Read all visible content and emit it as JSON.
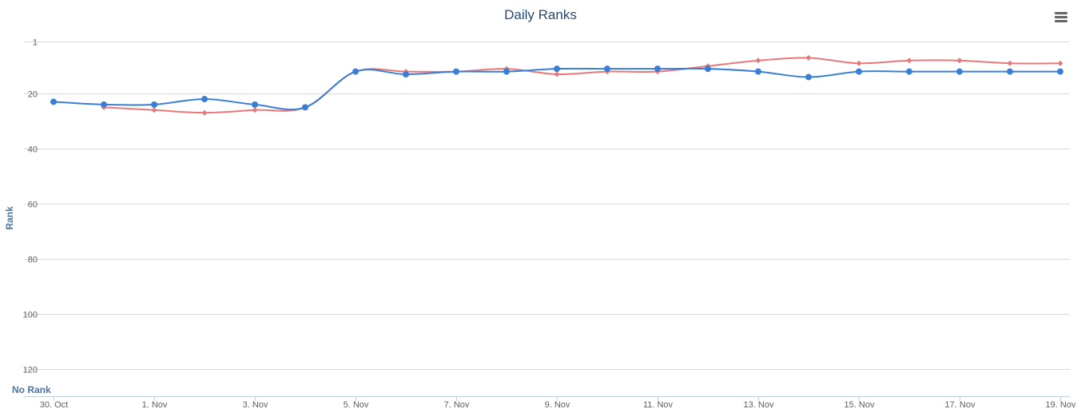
{
  "chart_data": {
    "type": "line",
    "title": "Daily Ranks",
    "ylabel": "Rank",
    "ylim_reversed": [
      1,
      130
    ],
    "y_bottom_label": "No Rank",
    "y_ticks": [
      1,
      20,
      40,
      60,
      80,
      100,
      120
    ],
    "x_tick_labels": [
      "30. Oct",
      "1. Nov",
      "3. Nov",
      "5. Nov",
      "7. Nov",
      "9. Nov",
      "11. Nov",
      "13. Nov",
      "15. Nov",
      "17. Nov",
      "19. Nov"
    ],
    "x": [
      "30. Oct",
      "31. Oct",
      "1. Nov",
      "2. Nov",
      "3. Nov",
      "4. Nov",
      "5. Nov",
      "6. Nov",
      "7. Nov",
      "8. Nov",
      "9. Nov",
      "10. Nov",
      "11. Nov",
      "12. Nov",
      "13. Nov",
      "14. Nov",
      "15. Nov",
      "16. Nov",
      "17. Nov",
      "18. Nov",
      "19. Nov"
    ],
    "grid": true,
    "legend": "none",
    "series": [
      {
        "color": "#3a7fd5",
        "marker": "circle",
        "values": [
          23,
          24,
          24,
          22,
          24,
          25,
          12,
          13,
          12,
          12,
          11,
          11,
          11,
          11,
          12,
          14,
          12,
          12,
          12,
          12,
          12
        ]
      },
      {
        "color": "#e8797a",
        "marker": "diamond",
        "values": [
          null,
          25,
          26,
          27,
          26,
          25,
          12,
          12,
          12,
          11,
          13,
          12,
          12,
          10,
          8,
          7,
          9,
          8,
          8,
          9,
          9
        ]
      }
    ]
  },
  "toolbar": {
    "menu_icon": "hamburger-menu-icon"
  }
}
